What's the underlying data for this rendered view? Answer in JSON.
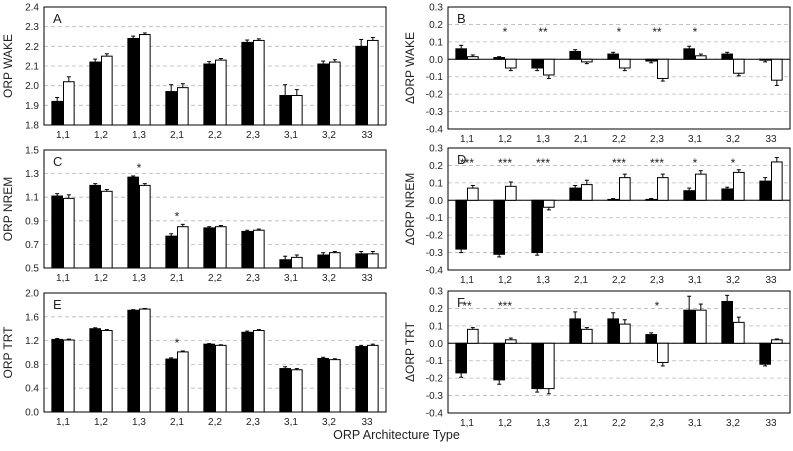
{
  "x_axis_title": "ORP Architecture Type",
  "star_glyph": "*",
  "colors": {
    "filled_bar": "#000000",
    "open_bar": "#ffffff",
    "grid": "#b8b8b8",
    "axis": "#000000"
  },
  "chart_data": [
    {
      "id": "A",
      "type": "bar",
      "ylabel": "ORP  WAKE",
      "categories": [
        "1,1",
        "1,2",
        "1,3",
        "2,1",
        "2,2",
        "2,3",
        "3,1",
        "3,2",
        "33"
      ],
      "ylim": [
        1.8,
        2.4
      ],
      "yticks": [
        1.8,
        1.9,
        2.0,
        2.1,
        2.2,
        2.3,
        2.4
      ],
      "ytick_labels": [
        "1.8",
        "1.9",
        "2.0",
        "2.1",
        "2.2",
        "2.3",
        "2.4"
      ],
      "grid": true,
      "x_labels_position": "bottom",
      "series": [
        {
          "name": "filled",
          "values": [
            1.92,
            2.12,
            2.24,
            1.97,
            2.11,
            2.22,
            1.95,
            2.11,
            2.2
          ],
          "errors": [
            0.02,
            0.015,
            0.012,
            0.035,
            0.012,
            0.012,
            0.055,
            0.015,
            0.035
          ]
        },
        {
          "name": "open",
          "values": [
            2.02,
            2.15,
            2.26,
            1.99,
            2.13,
            2.23,
            1.95,
            2.12,
            2.23
          ],
          "errors": [
            0.025,
            0.012,
            0.008,
            0.02,
            0.008,
            0.008,
            0.03,
            0.012,
            0.015
          ]
        }
      ],
      "stars": []
    },
    {
      "id": "B",
      "type": "bar",
      "ylabel": "ΔORP  WAKE",
      "categories": [
        "1,1",
        "1,2",
        "1,3",
        "2,1",
        "2,2",
        "2,3",
        "3,1",
        "3,2",
        "33"
      ],
      "ylim": [
        -0.4,
        0.3
      ],
      "yticks": [
        -0.4,
        -0.3,
        -0.2,
        -0.1,
        0.0,
        0.1,
        0.2,
        0.3
      ],
      "ytick_labels": [
        "-0.4",
        "-0.3",
        "-0.2",
        "-0.1",
        "0.0",
        "0.1",
        "0.2",
        "0.3"
      ],
      "grid": true,
      "x_labels_position": "top",
      "series": [
        {
          "name": "filled",
          "values": [
            0.06,
            0.01,
            -0.05,
            0.045,
            0.03,
            -0.01,
            0.06,
            0.03,
            -0.005
          ],
          "errors": [
            0.02,
            0.005,
            0.015,
            0.01,
            0.01,
            0.01,
            0.015,
            0.01,
            0.01
          ]
        },
        {
          "name": "open",
          "values": [
            0.015,
            -0.05,
            -0.09,
            -0.015,
            -0.05,
            -0.11,
            0.02,
            -0.08,
            -0.12
          ],
          "errors": [
            0.01,
            0.015,
            0.02,
            0.01,
            0.015,
            0.015,
            0.01,
            0.015,
            0.03
          ]
        }
      ],
      "stars": [
        {
          "category": "1,2",
          "label": "*"
        },
        {
          "category": "1,3",
          "label": "**"
        },
        {
          "category": "2,2",
          "label": "*"
        },
        {
          "category": "2,3",
          "label": "**"
        },
        {
          "category": "3,1",
          "label": "*"
        }
      ]
    },
    {
      "id": "C",
      "type": "bar",
      "ylabel": "ORP  NREM",
      "categories": [
        "1,1",
        "1,2",
        "1,3",
        "2,1",
        "2,2",
        "2,3",
        "3,1",
        "3,2",
        "33"
      ],
      "ylim": [
        0.5,
        1.5
      ],
      "yticks": [
        0.5,
        0.7,
        0.9,
        1.1,
        1.3,
        1.5
      ],
      "ytick_labels": [
        "0.5",
        "0.7",
        "0.9",
        "1.1",
        "1.3",
        "1.5"
      ],
      "grid": true,
      "x_labels_position": "bottom",
      "series": [
        {
          "name": "filled",
          "values": [
            1.11,
            1.2,
            1.27,
            0.77,
            0.84,
            0.81,
            0.57,
            0.61,
            0.62
          ],
          "errors": [
            0.02,
            0.015,
            0.01,
            0.02,
            0.01,
            0.01,
            0.03,
            0.02,
            0.02
          ]
        },
        {
          "name": "open",
          "values": [
            1.09,
            1.15,
            1.2,
            0.85,
            0.85,
            0.82,
            0.59,
            0.63,
            0.62
          ],
          "errors": [
            0.03,
            0.015,
            0.015,
            0.02,
            0.01,
            0.01,
            0.02,
            0.01,
            0.02
          ]
        }
      ],
      "stars": [
        {
          "category": "1,3",
          "label": "*"
        },
        {
          "category": "2,1",
          "label": "*"
        }
      ]
    },
    {
      "id": "D",
      "type": "bar",
      "ylabel": "ΔORP  NREM",
      "categories": [
        "1,1",
        "1,2",
        "1,3",
        "2,1",
        "2,2",
        "2,3",
        "3,1",
        "3,2",
        "33"
      ],
      "ylim": [
        -0.4,
        0.3
      ],
      "yticks": [
        -0.4,
        -0.3,
        -0.2,
        -0.1,
        0.0,
        0.1,
        0.2,
        0.3
      ],
      "ytick_labels": [
        "-0.4",
        "-0.3",
        "-0.2",
        "-0.1",
        "0.0",
        "0.1",
        "0.2",
        "0.3"
      ],
      "grid": true,
      "x_labels_position": "bottom",
      "series": [
        {
          "name": "filled",
          "values": [
            -0.28,
            -0.31,
            -0.3,
            0.07,
            0.005,
            0.005,
            0.055,
            0.065,
            0.11
          ],
          "errors": [
            0.02,
            0.015,
            0.015,
            0.015,
            0.005,
            0.005,
            0.015,
            0.01,
            0.02
          ]
        },
        {
          "name": "open",
          "values": [
            0.07,
            0.08,
            -0.04,
            0.09,
            0.13,
            0.13,
            0.15,
            0.16,
            0.22
          ],
          "errors": [
            0.015,
            0.025,
            0.015,
            0.025,
            0.02,
            0.02,
            0.02,
            0.015,
            0.025
          ]
        }
      ],
      "stars": [
        {
          "category": "1,1",
          "label": "***"
        },
        {
          "category": "1,2",
          "label": "***"
        },
        {
          "category": "1,3",
          "label": "***"
        },
        {
          "category": "2,2",
          "label": "***"
        },
        {
          "category": "2,3",
          "label": "***"
        },
        {
          "category": "3,1",
          "label": "*"
        },
        {
          "category": "3,2",
          "label": "*"
        }
      ]
    },
    {
      "id": "E",
      "type": "bar",
      "ylabel": "ORP  TRT",
      "categories": [
        "1,1",
        "1,2",
        "1,3",
        "2,1",
        "2,2",
        "2,3",
        "3,1",
        "3,2",
        "33"
      ],
      "ylim": [
        0.0,
        2.0
      ],
      "yticks": [
        0.0,
        0.4,
        0.8,
        1.2,
        1.6,
        2.0
      ],
      "ytick_labels": [
        "0.0",
        "0.4",
        "0.8",
        "1.2",
        "1.6",
        "2.0"
      ],
      "grid": true,
      "x_labels_position": "bottom",
      "series": [
        {
          "name": "filled",
          "values": [
            1.22,
            1.4,
            1.71,
            0.89,
            1.14,
            1.34,
            0.73,
            0.9,
            1.1
          ],
          "errors": [
            0.015,
            0.015,
            0.01,
            0.02,
            0.01,
            0.02,
            0.03,
            0.02,
            0.02
          ]
        },
        {
          "name": "open",
          "values": [
            1.21,
            1.37,
            1.73,
            1.01,
            1.12,
            1.37,
            0.71,
            0.88,
            1.12
          ],
          "errors": [
            0.015,
            0.015,
            0.01,
            0.015,
            0.01,
            0.015,
            0.02,
            0.015,
            0.02
          ]
        }
      ],
      "stars": [
        {
          "category": "2,1",
          "label": "*"
        }
      ]
    },
    {
      "id": "F",
      "type": "bar",
      "ylabel": "ΔORP  TRT",
      "categories": [
        "1,1",
        "1,2",
        "1,3",
        "2,1",
        "2,2",
        "2,3",
        "3,1",
        "3,2",
        "33"
      ],
      "ylim": [
        -0.4,
        0.3
      ],
      "yticks": [
        -0.4,
        -0.3,
        -0.2,
        -0.1,
        0.0,
        0.1,
        0.2,
        0.3
      ],
      "ytick_labels": [
        "-0.4",
        "-0.3",
        "-0.2",
        "-0.1",
        "0.0",
        "0.1",
        "0.2",
        "0.3"
      ],
      "grid": true,
      "x_labels_position": "bottom",
      "series": [
        {
          "name": "filled",
          "values": [
            -0.17,
            -0.21,
            -0.26,
            0.14,
            0.14,
            0.05,
            0.19,
            0.24,
            -0.12
          ],
          "errors": [
            0.025,
            0.025,
            0.02,
            0.04,
            0.035,
            0.01,
            0.08,
            0.035,
            0.01
          ]
        },
        {
          "name": "open",
          "values": [
            0.08,
            0.02,
            -0.26,
            0.08,
            0.11,
            -0.11,
            0.19,
            0.12,
            0.02
          ],
          "errors": [
            0.01,
            0.01,
            0.03,
            0.01,
            0.025,
            0.02,
            0.035,
            0.03,
            0.005
          ]
        }
      ],
      "stars": [
        {
          "category": "1,1",
          "label": "**"
        },
        {
          "category": "1,2",
          "label": "***"
        },
        {
          "category": "2,3",
          "label": "*"
        }
      ]
    }
  ]
}
